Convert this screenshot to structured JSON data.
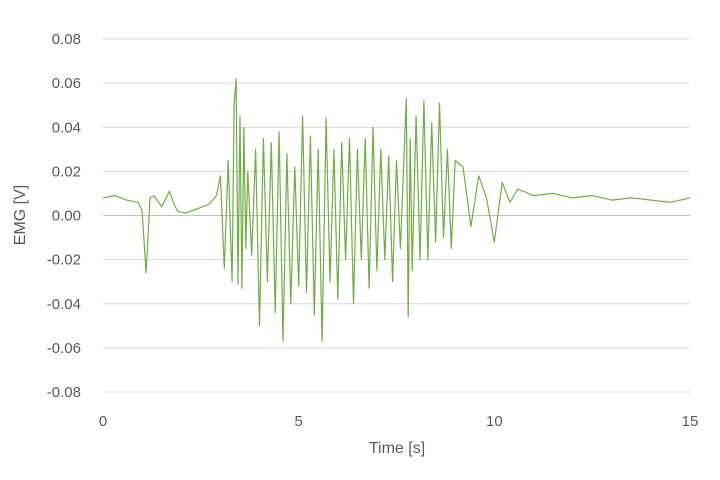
{
  "chart_data": {
    "type": "line",
    "title": "",
    "xlabel": "Time [s]",
    "ylabel": "EMG [V]",
    "xlim": [
      0,
      15
    ],
    "ylim": [
      -0.08,
      0.08
    ],
    "x_ticks": [
      0,
      5,
      10,
      15
    ],
    "x_tick_labels": [
      "0",
      "5",
      "10",
      "15"
    ],
    "y_ticks": [
      0.08,
      0.06,
      0.04,
      0.02,
      0.0,
      -0.02,
      -0.04,
      -0.06,
      -0.08
    ],
    "y_tick_labels": [
      "0.08",
      "0.06",
      "0.04",
      "0.02",
      "0.00",
      "-0.02",
      "-0.04",
      "-0.06",
      "-0.08"
    ],
    "grid": "horizontal",
    "legend": "none",
    "series": [
      {
        "color": "#70ad47",
        "x": [
          0.0,
          0.3,
          0.6,
          0.9,
          1.0,
          1.05,
          1.1,
          1.15,
          1.2,
          1.3,
          1.5,
          1.7,
          1.8,
          1.9,
          2.1,
          2.4,
          2.7,
          2.9,
          3.0,
          3.1,
          3.2,
          3.3,
          3.35,
          3.4,
          3.45,
          3.5,
          3.55,
          3.6,
          3.65,
          3.7,
          3.8,
          3.9,
          4.0,
          4.1,
          4.2,
          4.3,
          4.4,
          4.5,
          4.6,
          4.7,
          4.8,
          4.9,
          5.0,
          5.1,
          5.2,
          5.3,
          5.4,
          5.5,
          5.6,
          5.7,
          5.8,
          5.9,
          6.0,
          6.1,
          6.2,
          6.3,
          6.4,
          6.5,
          6.6,
          6.7,
          6.8,
          6.9,
          7.0,
          7.1,
          7.2,
          7.3,
          7.4,
          7.5,
          7.6,
          7.7,
          7.75,
          7.8,
          7.85,
          7.9,
          8.0,
          8.1,
          8.2,
          8.3,
          8.4,
          8.5,
          8.6,
          8.7,
          8.8,
          8.9,
          9.0,
          9.2,
          9.4,
          9.6,
          9.8,
          10.0,
          10.2,
          10.4,
          10.6,
          11.0,
          11.5,
          12.0,
          12.5,
          13.0,
          13.5,
          14.0,
          14.5,
          15.0
        ],
        "y": [
          0.008,
          0.009,
          0.007,
          0.006,
          0.002,
          -0.012,
          -0.026,
          -0.01,
          0.008,
          0.009,
          0.004,
          0.011,
          0.006,
          0.002,
          0.001,
          0.003,
          0.005,
          0.009,
          0.018,
          -0.024,
          0.025,
          -0.03,
          0.05,
          0.062,
          -0.031,
          0.045,
          -0.033,
          0.04,
          -0.015,
          0.02,
          -0.018,
          0.03,
          -0.05,
          0.035,
          -0.03,
          0.033,
          -0.044,
          0.038,
          -0.057,
          0.028,
          -0.04,
          0.022,
          -0.032,
          0.045,
          -0.035,
          0.036,
          -0.045,
          0.03,
          -0.057,
          0.044,
          -0.03,
          0.03,
          -0.038,
          0.033,
          -0.02,
          0.035,
          -0.04,
          0.03,
          -0.02,
          0.035,
          -0.033,
          0.04,
          -0.025,
          0.03,
          -0.02,
          0.027,
          -0.03,
          0.025,
          -0.015,
          0.03,
          0.053,
          -0.046,
          0.035,
          -0.025,
          0.045,
          -0.02,
          0.052,
          -0.02,
          0.042,
          -0.012,
          0.051,
          -0.01,
          0.03,
          -0.015,
          0.025,
          0.022,
          -0.005,
          0.018,
          0.008,
          -0.012,
          0.015,
          0.006,
          0.012,
          0.009,
          0.01,
          0.008,
          0.009,
          0.007,
          0.008,
          0.007,
          0.006,
          0.008
        ]
      }
    ]
  }
}
